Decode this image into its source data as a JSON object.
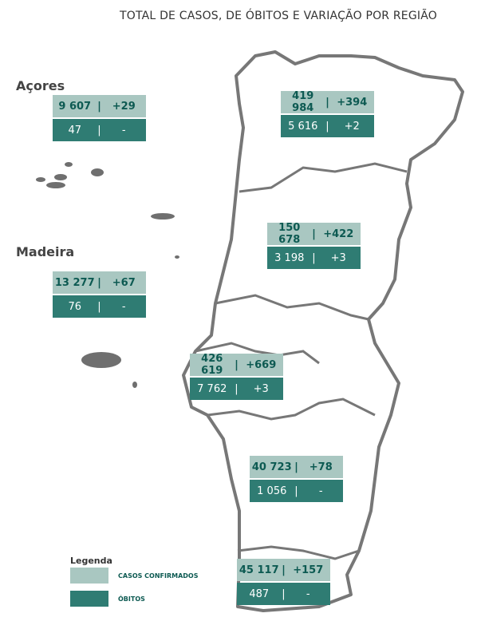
{
  "header": {
    "title": "TOTAL DE CASOS, DE ÓBITOS E VARIAÇÃO POR REGIÃO"
  },
  "labels": [
    "Açores",
    "Madeira"
  ],
  "boxes": [
    {
      "cases": "9 607",
      "cases_change": "+29",
      "deaths": "47",
      "deaths_change": "-"
    },
    {
      "cases": "13 277",
      "cases_change": "+67",
      "deaths": "76",
      "deaths_change": "-"
    },
    {
      "cases": "419 984",
      "cases_change": "+394",
      "deaths": "5 616",
      "deaths_change": "+2"
    },
    {
      "cases": "150 678",
      "cases_change": "+422",
      "deaths": "3 198",
      "deaths_change": "+3"
    },
    {
      "cases": "426 619",
      "cases_change": "+669",
      "deaths": "7 762",
      "deaths_change": "+3"
    },
    {
      "cases": "40 723",
      "cases_change": "+78",
      "deaths": "1 056",
      "deaths_change": "-"
    },
    {
      "cases": "45 117",
      "cases_change": "+157",
      "deaths": "487",
      "deaths_change": "-"
    }
  ],
  "legend": {
    "title": "Legenda",
    "items": [
      "CASOS CONFIRMADOS",
      "ÓBITOS"
    ]
  }
}
